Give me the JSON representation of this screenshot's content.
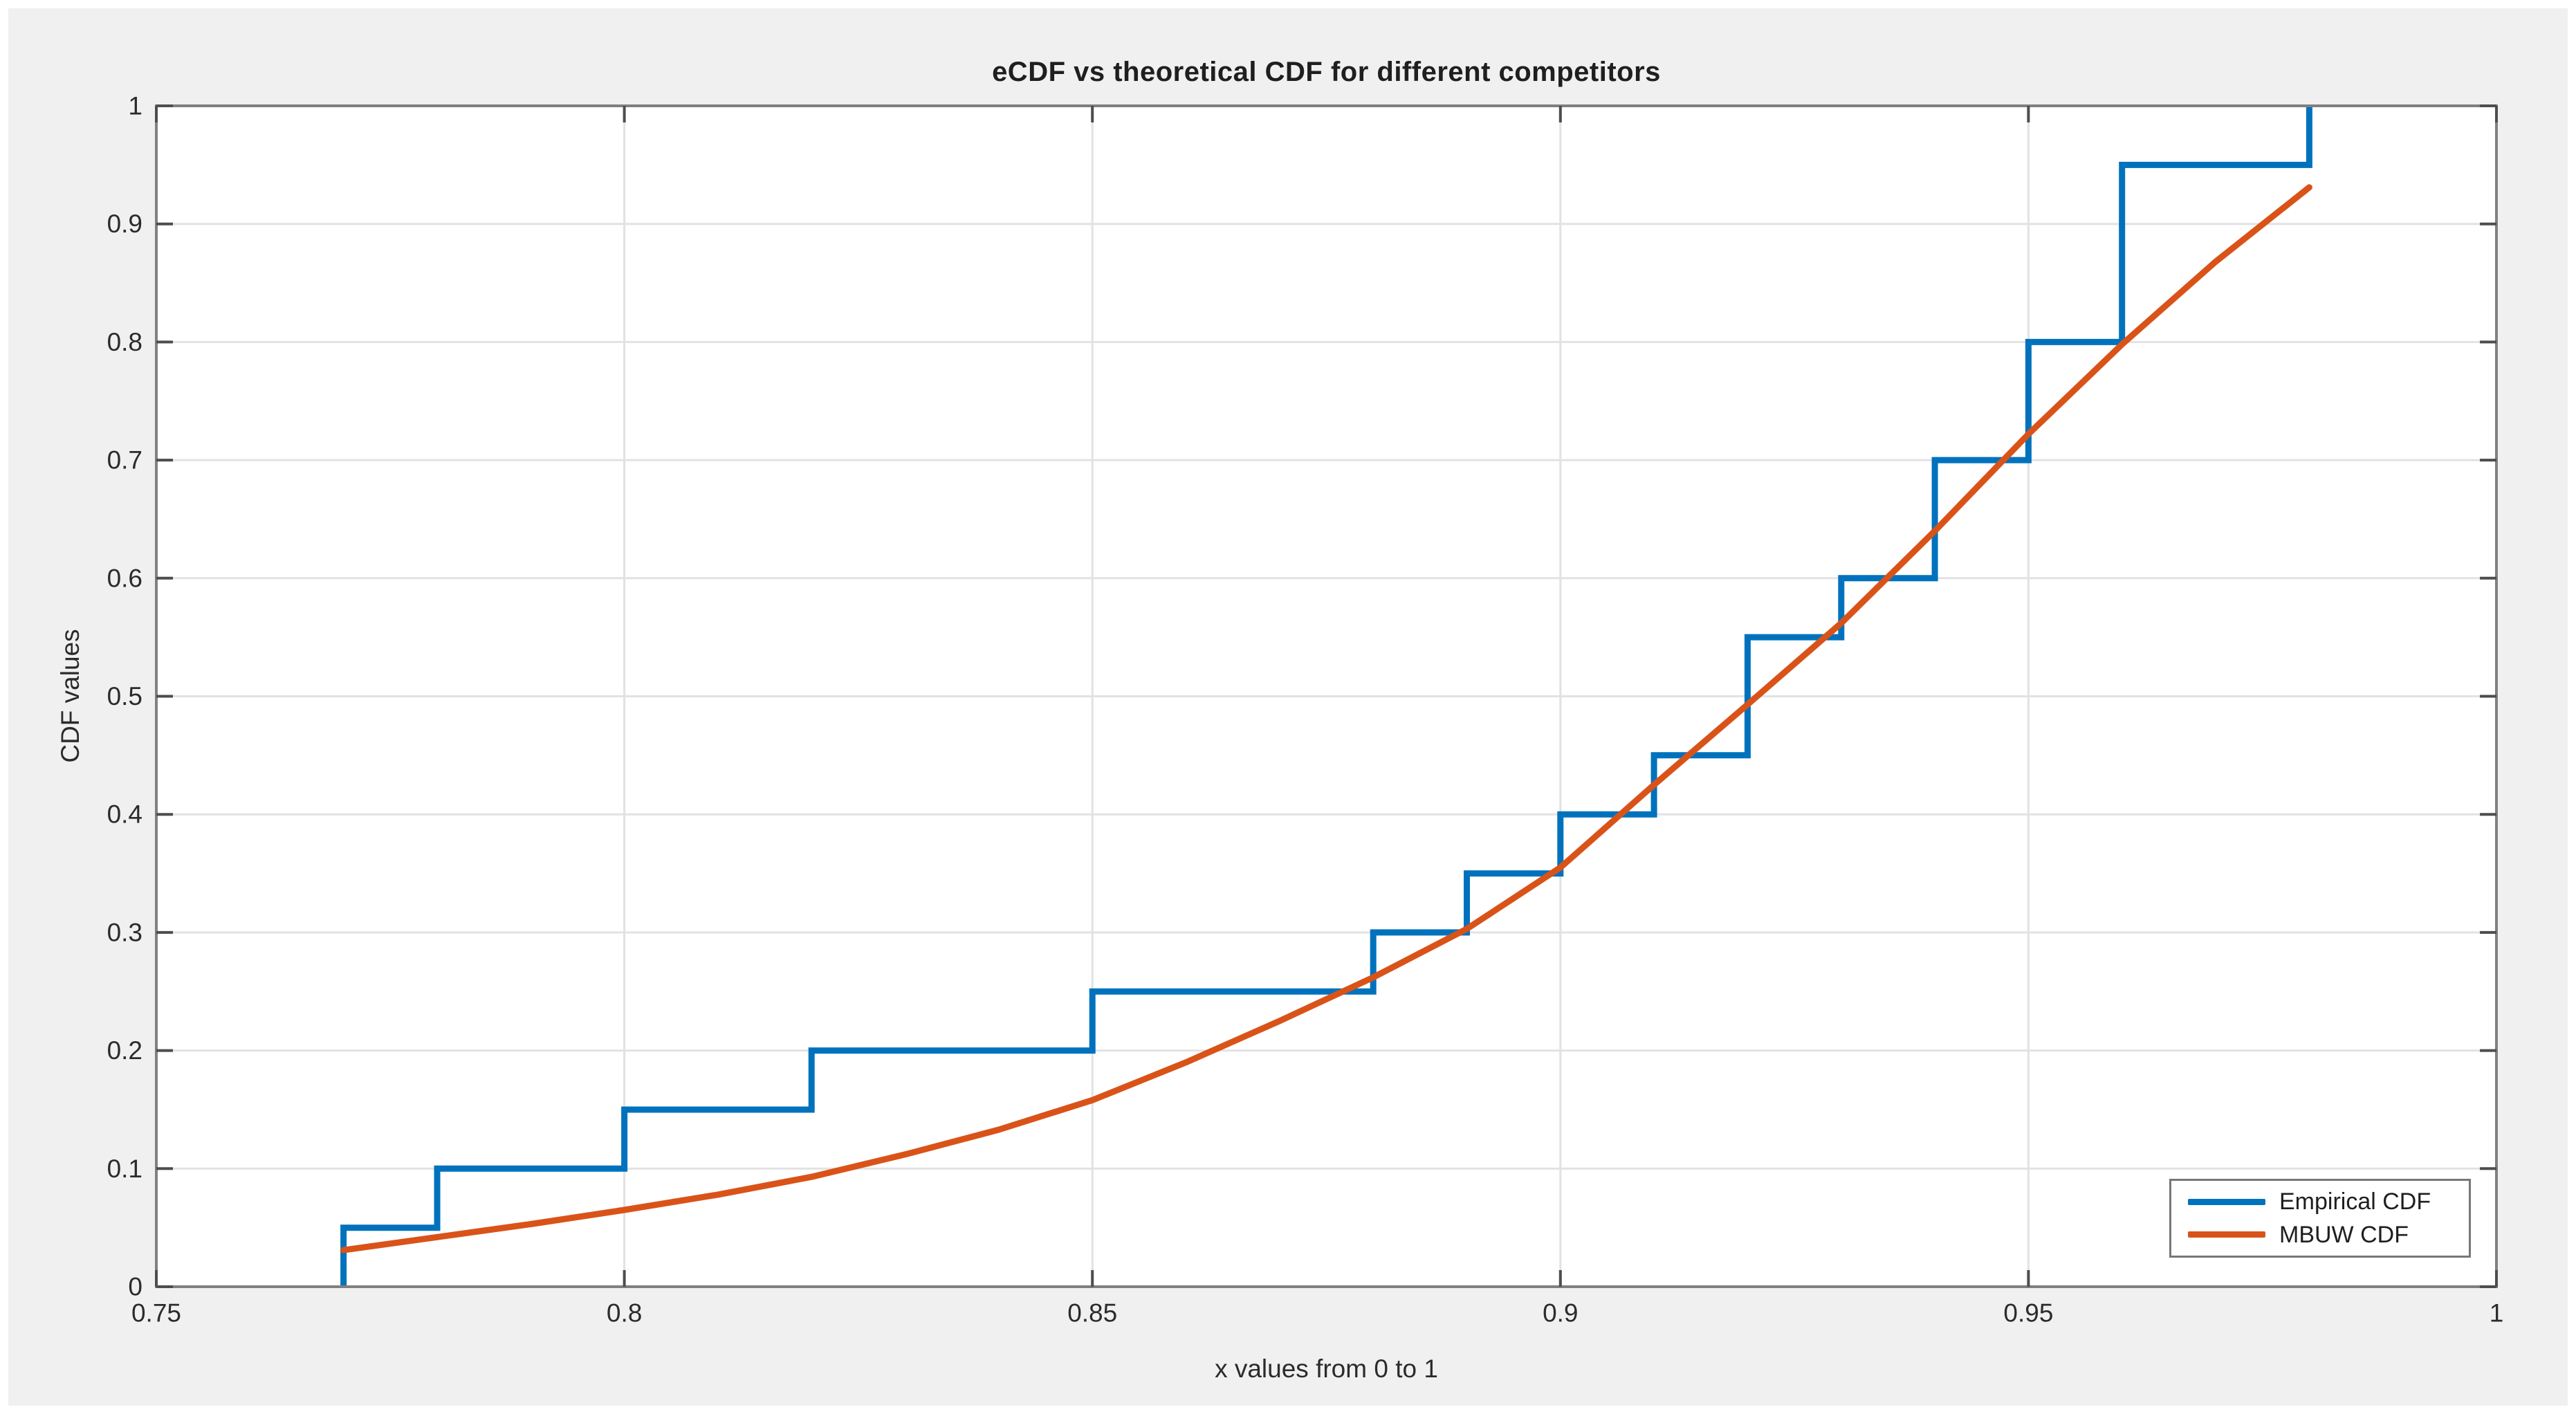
{
  "chart_data": {
    "type": "line",
    "title": "eCDF vs theoretical CDF for different competitors",
    "xlabel": "x values from 0 to 1",
    "ylabel": "CDF values",
    "xlim": [
      0.75,
      1.0
    ],
    "ylim": [
      0,
      1
    ],
    "grid": true,
    "legend_position": "southeast",
    "xticks": [
      {
        "value": 0.75,
        "label": "0.75"
      },
      {
        "value": 0.8,
        "label": "0.8"
      },
      {
        "value": 0.85,
        "label": "0.85"
      },
      {
        "value": 0.9,
        "label": "0.9"
      },
      {
        "value": 0.95,
        "label": "0.95"
      },
      {
        "value": 1,
        "label": "1"
      }
    ],
    "yticks": [
      {
        "value": 0,
        "label": "0"
      },
      {
        "value": 0.1,
        "label": "0.1"
      },
      {
        "value": 0.2,
        "label": "0.2"
      },
      {
        "value": 0.3,
        "label": "0.3"
      },
      {
        "value": 0.4,
        "label": "0.4"
      },
      {
        "value": 0.5,
        "label": "0.5"
      },
      {
        "value": 0.6,
        "label": "0.6"
      },
      {
        "value": 0.7,
        "label": "0.7"
      },
      {
        "value": 0.8,
        "label": "0.8"
      },
      {
        "value": 0.9,
        "label": "0.9"
      },
      {
        "value": 1,
        "label": "1"
      }
    ],
    "series": [
      {
        "name": "Empirical CDF",
        "color": "#0072BD",
        "style": "step",
        "samples": [
          0.77,
          0.78,
          0.8,
          0.82,
          0.85,
          0.88,
          0.89,
          0.9,
          0.91,
          0.92,
          0.92,
          0.93,
          0.94,
          0.94,
          0.95,
          0.95,
          0.96,
          0.96,
          0.96,
          0.98
        ],
        "jumps": [
          [
            0.77,
            0.05
          ],
          [
            0.78,
            0.1
          ],
          [
            0.8,
            0.15
          ],
          [
            0.82,
            0.2
          ],
          [
            0.85,
            0.25
          ],
          [
            0.88,
            0.3
          ],
          [
            0.89,
            0.35
          ],
          [
            0.9,
            0.4
          ],
          [
            0.91,
            0.45
          ],
          [
            0.92,
            0.55
          ],
          [
            0.93,
            0.6
          ],
          [
            0.94,
            0.7
          ],
          [
            0.95,
            0.8
          ],
          [
            0.96,
            0.95
          ],
          [
            0.98,
            1.0
          ]
        ]
      },
      {
        "name": "MBUW CDF",
        "color": "#D95319",
        "style": "smooth",
        "points": [
          [
            0.77,
            0.031
          ],
          [
            0.78,
            0.042
          ],
          [
            0.79,
            0.053
          ],
          [
            0.8,
            0.065
          ],
          [
            0.81,
            0.078
          ],
          [
            0.82,
            0.093
          ],
          [
            0.83,
            0.112
          ],
          [
            0.84,
            0.133
          ],
          [
            0.85,
            0.158
          ],
          [
            0.86,
            0.19
          ],
          [
            0.87,
            0.225
          ],
          [
            0.88,
            0.262
          ],
          [
            0.89,
            0.303
          ],
          [
            0.9,
            0.355
          ],
          [
            0.91,
            0.425
          ],
          [
            0.92,
            0.493
          ],
          [
            0.93,
            0.562
          ],
          [
            0.94,
            0.64
          ],
          [
            0.95,
            0.722
          ],
          [
            0.96,
            0.798
          ],
          [
            0.97,
            0.868
          ],
          [
            0.98,
            0.931
          ]
        ]
      }
    ],
    "colors": {
      "figure_background": "#F0F0F0",
      "plot_background": "#FFFFFF",
      "axis_frame": "#808080",
      "grid": "#E2E2E2",
      "tick": "#4D4D4D",
      "tick_text": "#2B2B2B"
    }
  }
}
